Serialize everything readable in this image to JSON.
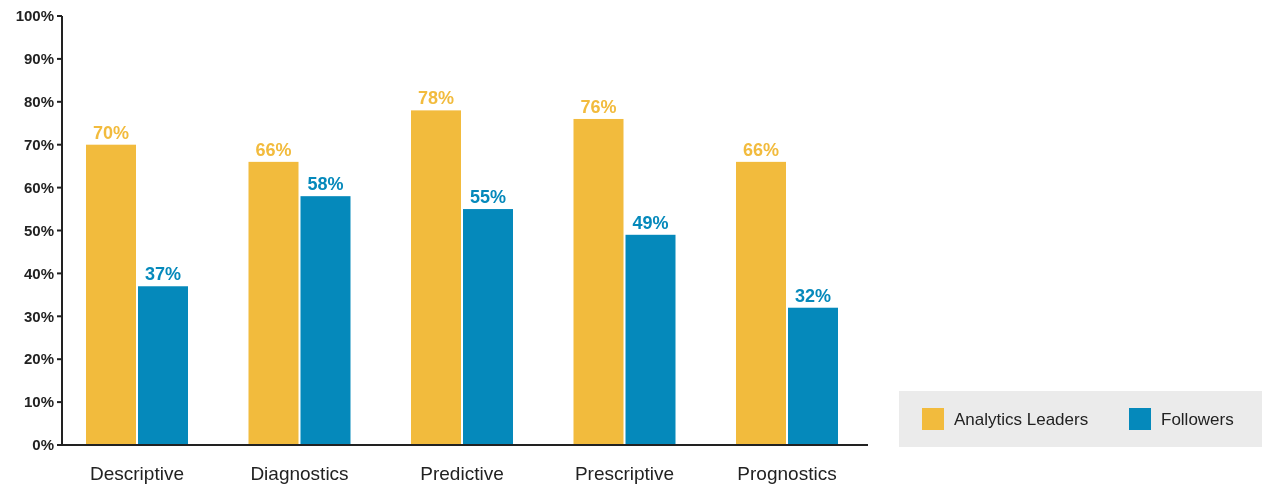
{
  "chart_data": {
    "type": "bar",
    "categories": [
      "Descriptive",
      "Diagnostics",
      "Predictive",
      "Prescriptive",
      "Prognostics"
    ],
    "series": [
      {
        "name": "Analytics Leaders",
        "color": "#f2bb3d",
        "values": [
          70,
          66,
          78,
          76,
          66
        ],
        "value_labels": [
          "70%",
          "66%",
          "78%",
          "76%",
          "66%"
        ]
      },
      {
        "name": "Followers",
        "color": "#0589bb",
        "values": [
          37,
          58,
          55,
          49,
          32
        ],
        "value_labels": [
          "37%",
          "58%",
          "55%",
          "49%",
          "32%"
        ]
      }
    ],
    "ylim": [
      0,
      100
    ],
    "yticks": [
      {
        "value": 0,
        "label": "0%"
      },
      {
        "value": 10,
        "label": "10%"
      },
      {
        "value": 20,
        "label": "20%"
      },
      {
        "value": 30,
        "label": "30%"
      },
      {
        "value": 40,
        "label": "40%"
      },
      {
        "value": 50,
        "label": "50%"
      },
      {
        "value": 60,
        "label": "60%"
      },
      {
        "value": 70,
        "label": "70%"
      },
      {
        "value": 80,
        "label": "80%"
      },
      {
        "value": 90,
        "label": "90%"
      },
      {
        "value": 100,
        "label": "100%"
      }
    ],
    "grid": false,
    "legend": "bottom right"
  }
}
